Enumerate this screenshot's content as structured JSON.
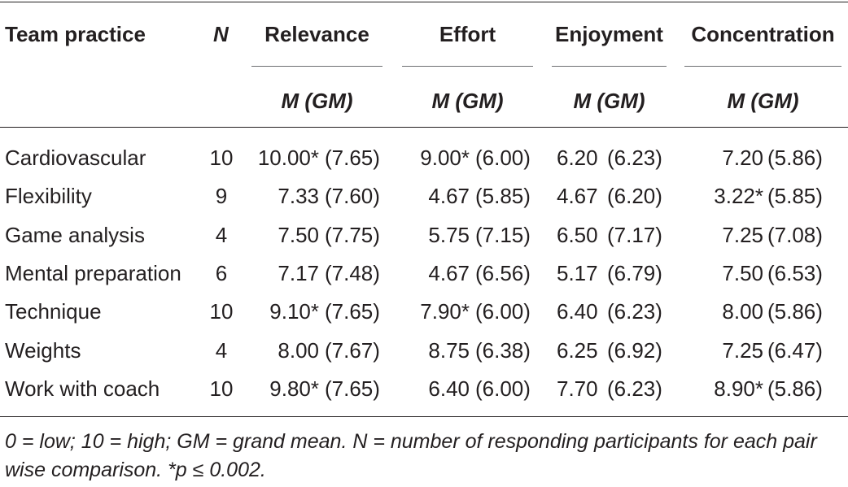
{
  "table": {
    "headers": {
      "team_practice": "Team practice",
      "n": "N",
      "relevance": "Relevance",
      "effort": "Effort",
      "enjoyment": "Enjoyment",
      "concentration": "Concentration"
    },
    "subheader": "M (GM)",
    "rows": [
      {
        "practice": "Cardiovascular",
        "n": "10",
        "rel_m": "10.00*",
        "rel_gm": "(7.65)",
        "eff_m": "9.00*",
        "eff_gm": "(6.00)",
        "enj_m": "6.20",
        "enj_gm": "(6.23)",
        "con_m": "7.20",
        "con_gm": "(5.86)"
      },
      {
        "practice": "Flexibility",
        "n": "9",
        "rel_m": "7.33",
        "rel_gm": "(7.60)",
        "eff_m": "4.67",
        "eff_gm": "(5.85)",
        "enj_m": "4.67",
        "enj_gm": "(6.20)",
        "con_m": "3.22*",
        "con_gm": "(5.85)"
      },
      {
        "practice": "Game analysis",
        "n": "4",
        "rel_m": "7.50",
        "rel_gm": "(7.75)",
        "eff_m": "5.75",
        "eff_gm": "(7.15)",
        "enj_m": "6.50",
        "enj_gm": "(7.17)",
        "con_m": "7.25",
        "con_gm": "(7.08)"
      },
      {
        "practice": "Mental preparation",
        "n": "6",
        "rel_m": "7.17",
        "rel_gm": "(7.48)",
        "eff_m": "4.67",
        "eff_gm": "(6.56)",
        "enj_m": "5.17",
        "enj_gm": "(6.79)",
        "con_m": "7.50",
        "con_gm": "(6.53)"
      },
      {
        "practice": "Technique",
        "n": "10",
        "rel_m": "9.10*",
        "rel_gm": "(7.65)",
        "eff_m": "7.90*",
        "eff_gm": "(6.00)",
        "enj_m": "6.40",
        "enj_gm": "(6.23)",
        "con_m": "8.00",
        "con_gm": "(5.86)"
      },
      {
        "practice": "Weights",
        "n": "4",
        "rel_m": "8.00",
        "rel_gm": "(7.67)",
        "eff_m": "8.75",
        "eff_gm": "(6.38)",
        "enj_m": "6.25",
        "enj_gm": "(6.92)",
        "con_m": "7.25",
        "con_gm": "(6.47)"
      },
      {
        "practice": "Work with coach",
        "n": "10",
        "rel_m": "9.80*",
        "rel_gm": "(7.65)",
        "eff_m": "6.40",
        "eff_gm": "(6.00)",
        "enj_m": "7.70",
        "enj_gm": "(6.23)",
        "con_m": "8.90*",
        "con_gm": "(5.86)"
      }
    ],
    "footnote": "0 = low; 10 = high; GM = grand mean. N = number of responding participants for each pair wise comparison. *p ≤ 0.002."
  }
}
